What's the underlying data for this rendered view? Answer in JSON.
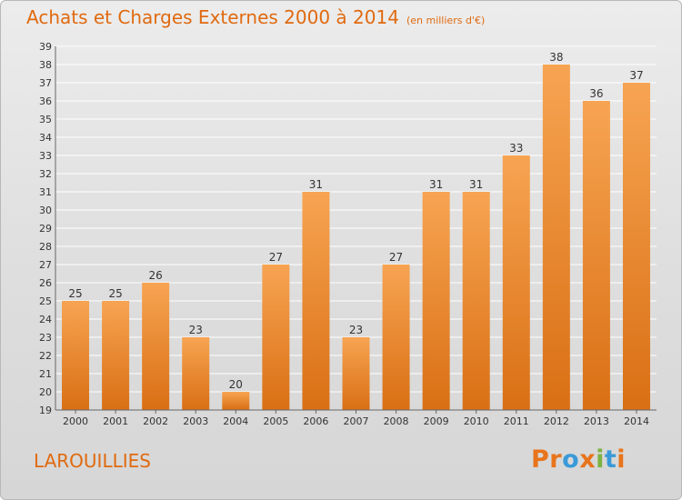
{
  "header": {
    "title": "Achats et Charges Externes 2000 à 2014",
    "unit": "(en milliers d'€)"
  },
  "footer": {
    "commune": "LAROUILLIES",
    "logo_text": "Proxiti",
    "logo_colors": [
      "#e8741b",
      "#e8741b",
      "#3a9ad9",
      "#e8741b",
      "#7cb342",
      "#3a9ad9",
      "#e8741b"
    ]
  },
  "colors": {
    "bar_top": "#f7a452",
    "bar_bottom": "#d96f14",
    "grid": "#ffffff",
    "text": "#333333",
    "accent": "#e06a10"
  },
  "chart_data": {
    "type": "bar",
    "title": "Achats et Charges Externes 2000 à 2014",
    "subtitle": "(en milliers d'€)",
    "xlabel": "",
    "ylabel": "",
    "categories": [
      "2000",
      "2001",
      "2002",
      "2003",
      "2004",
      "2005",
      "2006",
      "2007",
      "2008",
      "2009",
      "2010",
      "2011",
      "2012",
      "2013",
      "2014"
    ],
    "values": [
      25,
      25,
      26,
      23,
      20,
      27,
      31,
      23,
      27,
      31,
      31,
      33,
      38,
      36,
      37
    ],
    "ylim": [
      19,
      39
    ],
    "yticks": [
      19,
      20,
      21,
      22,
      23,
      24,
      25,
      26,
      27,
      28,
      29,
      30,
      31,
      32,
      33,
      34,
      35,
      36,
      37,
      38,
      39
    ],
    "grid": true,
    "data_labels": true
  }
}
